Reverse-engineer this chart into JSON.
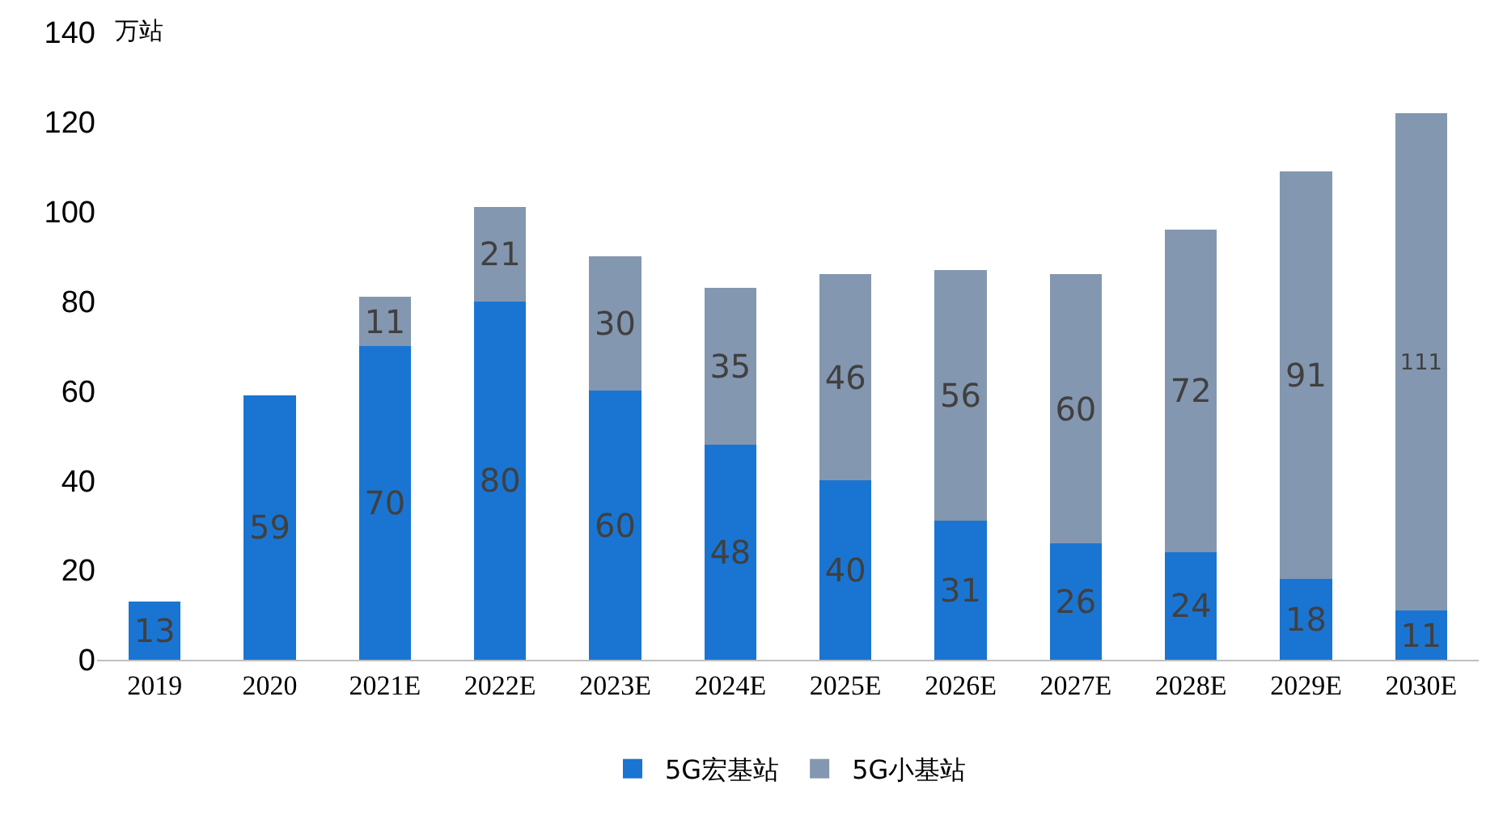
{
  "chart_data": {
    "type": "bar",
    "stacked": true,
    "ylabel": "万站",
    "categories": [
      "2019",
      "2020",
      "2021E",
      "2022E",
      "2023E",
      "2024E",
      "2025E",
      "2026E",
      "2027E",
      "2028E",
      "2029E",
      "2030E"
    ],
    "series": [
      {
        "name": "5G宏基站",
        "color": "#1a75d2",
        "values": [
          13,
          59,
          70,
          80,
          60,
          48,
          40,
          31,
          26,
          24,
          18,
          11
        ]
      },
      {
        "name": "5G小基站",
        "color": "#8497b0",
        "values": [
          null,
          null,
          11,
          21,
          30,
          35,
          46,
          56,
          60,
          72,
          91,
          111
        ]
      }
    ],
    "ylim": [
      0,
      140
    ],
    "yticks": [
      0,
      20,
      40,
      60,
      80,
      100,
      120,
      140
    ],
    "grid": false,
    "legend": "bottom",
    "data_labels": true
  }
}
